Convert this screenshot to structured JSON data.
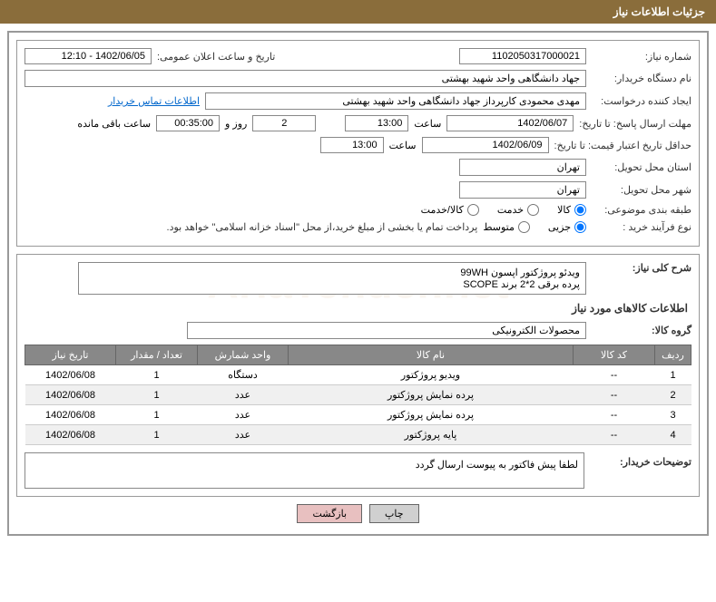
{
  "header": {
    "title": "جزئیات اطلاعات نیاز"
  },
  "watermark": "AriaTender.net",
  "fields": {
    "need_number": {
      "label": "شماره نیاز:",
      "value": "1102050317000021"
    },
    "announce_date": {
      "label": "تاریخ و ساعت اعلان عمومی:",
      "value": "1402/06/05 - 12:10"
    },
    "buyer_org": {
      "label": "نام دستگاه خریدار:",
      "value": "جهاد دانشگاهی واحد شهید بهشتی"
    },
    "requester": {
      "label": "ایجاد کننده درخواست:",
      "value": "مهدی محمودی کارپرداز جهاد دانشگاهی واحد شهید بهشتی"
    },
    "buyer_contact_link": "اطلاعات تماس خریدار",
    "reply_deadline": {
      "label": "مهلت ارسال پاسخ: تا تاریخ:",
      "date": "1402/06/07",
      "time_label": "ساعت",
      "time": "13:00",
      "days": "2",
      "days_label": "روز و",
      "remaining": "00:35:00",
      "remaining_label": "ساعت باقی مانده"
    },
    "price_validity": {
      "label": "حداقل تاریخ اعتبار قیمت: تا تاریخ:",
      "date": "1402/06/09",
      "time_label": "ساعت",
      "time": "13:00"
    },
    "delivery_province": {
      "label": "استان محل تحویل:",
      "value": "تهران"
    },
    "delivery_city": {
      "label": "شهر محل تحویل:",
      "value": "تهران"
    },
    "category": {
      "label": "طبقه بندی موضوعی:",
      "options": [
        {
          "label": "کالا",
          "checked": true
        },
        {
          "label": "خدمت",
          "checked": false
        },
        {
          "label": "کالا/خدمت",
          "checked": false
        }
      ]
    },
    "purchase_type": {
      "label": "نوع فرآیند خرید :",
      "options": [
        {
          "label": "جزیی",
          "checked": true
        },
        {
          "label": "متوسط",
          "checked": false
        }
      ],
      "note": "پرداخت تمام یا بخشی از مبلغ خرید،از محل \"اسناد خزانه اسلامی\" خواهد بود."
    }
  },
  "need_summary": {
    "label": "شرح کلی نیاز:",
    "line1": "ویدئو پروژکتور اپسون 99WH",
    "line2": "پرده برقی 2*2 برند SCOPE"
  },
  "goods_section_title": "اطلاعات کالاهای مورد نیاز",
  "goods_group": {
    "label": "گروه کالا:",
    "value": "محصولات الکترونیکی"
  },
  "table": {
    "headers": [
      "ردیف",
      "کد کالا",
      "نام کالا",
      "واحد شمارش",
      "تعداد / مقدار",
      "تاریخ نیاز"
    ],
    "rows": [
      [
        "1",
        "--",
        "ویدیو پروژکتور",
        "دستگاه",
        "1",
        "1402/06/08"
      ],
      [
        "2",
        "--",
        "پرده نمایش پروژکتور",
        "عدد",
        "1",
        "1402/06/08"
      ],
      [
        "3",
        "--",
        "پرده نمایش پروژکتور",
        "عدد",
        "1",
        "1402/06/08"
      ],
      [
        "4",
        "--",
        "پایه پروژکتور",
        "عدد",
        "1",
        "1402/06/08"
      ]
    ]
  },
  "buyer_notes": {
    "label": "توضیحات خریدار:",
    "value": "لطفا پیش فاکتور به پیوست ارسال گردد"
  },
  "buttons": {
    "print": "چاپ",
    "back": "بازگشت"
  },
  "colors": {
    "header_bg": "#8a6d3b",
    "th_bg": "#888888",
    "border": "#999999"
  }
}
